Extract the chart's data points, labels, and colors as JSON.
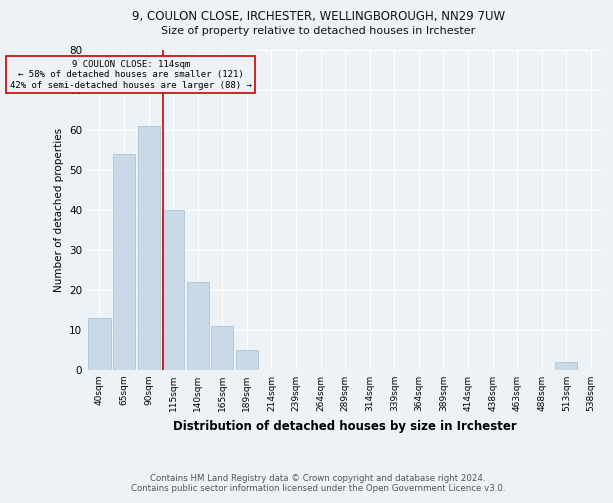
{
  "title1": "9, COULON CLOSE, IRCHESTER, WELLINGBOROUGH, NN29 7UW",
  "title2": "Size of property relative to detached houses in Irchester",
  "xlabel": "Distribution of detached houses by size in Irchester",
  "ylabel": "Number of detached properties",
  "annotation_line1": "9 COULON CLOSE: 114sqm",
  "annotation_line2": "← 58% of detached houses are smaller (121)",
  "annotation_line3": "42% of semi-detached houses are larger (88) →",
  "bar_labels": [
    "40sqm",
    "65sqm",
    "90sqm",
    "115sqm",
    "140sqm",
    "165sqm",
    "189sqm",
    "214sqm",
    "239sqm",
    "264sqm",
    "289sqm",
    "314sqm",
    "339sqm",
    "364sqm",
    "389sqm",
    "414sqm",
    "438sqm",
    "463sqm",
    "488sqm",
    "513sqm",
    "538sqm"
  ],
  "bar_values": [
    13,
    54,
    61,
    40,
    22,
    11,
    5,
    0,
    0,
    0,
    0,
    0,
    0,
    0,
    0,
    0,
    0,
    0,
    0,
    2,
    0
  ],
  "bar_color": "#c9d9e8",
  "bar_edge_color": "#a8bfcf",
  "property_line_x": 2.575,
  "property_line_color": "#cc0000",
  "annotation_box_color": "#cc0000",
  "background_color": "#edf2f7",
  "grid_color": "#ffffff",
  "footer_line1": "Contains HM Land Registry data © Crown copyright and database right 2024.",
  "footer_line2": "Contains public sector information licensed under the Open Government Licence v3.0.",
  "ylim": [
    0,
    80
  ],
  "yticks": [
    0,
    10,
    20,
    30,
    40,
    50,
    60,
    70,
    80
  ]
}
